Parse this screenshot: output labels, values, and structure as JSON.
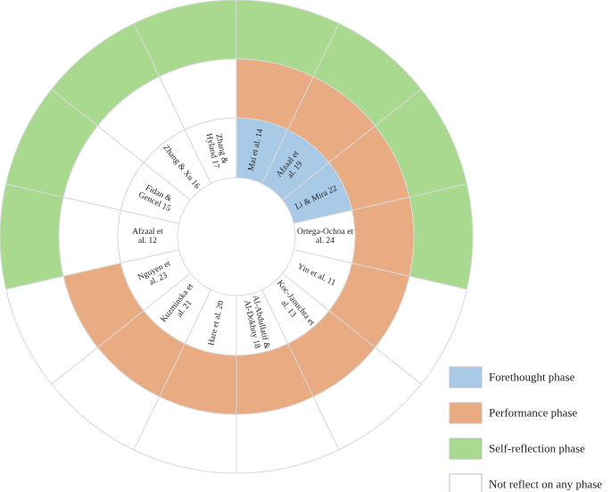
{
  "chart_data": {
    "type": "sunburst",
    "colors": {
      "forethought": "#a9cae6",
      "performance": "#e9ac82",
      "self_reflection": "#a9d98e",
      "none": "#ffffff"
    },
    "legend": [
      {
        "key": "forethought",
        "label": "Forethought phase"
      },
      {
        "key": "performance",
        "label": "Performance phase"
      },
      {
        "key": "self_reflection",
        "label": "Self-reflection phase"
      },
      {
        "key": "none",
        "label": "Not reflect on any phase"
      }
    ],
    "studies": [
      {
        "label": "Mai et al. 14",
        "rings": [
          "forethought",
          "performance",
          "self_reflection"
        ]
      },
      {
        "label": "Afzaal et al. 19",
        "rings": [
          "forethought",
          "performance",
          "self_reflection"
        ]
      },
      {
        "label": "Li & Mira 22",
        "rings": [
          "forethought",
          "performance",
          "self_reflection"
        ]
      },
      {
        "label": "Ortega-Ochoa et al. 24",
        "rings": [
          "none",
          "performance",
          "self_reflection"
        ]
      },
      {
        "label": "Yin et al. 11",
        "rings": [
          "none",
          "performance",
          "none"
        ]
      },
      {
        "label": "Koc-Januchta et al. 13",
        "rings": [
          "none",
          "performance",
          "none"
        ]
      },
      {
        "label": "Al-Abdullatif & Al-Dokhny 18",
        "rings": [
          "none",
          "performance",
          "none"
        ]
      },
      {
        "label": "Hare et al. 20",
        "rings": [
          "none",
          "performance",
          "none"
        ]
      },
      {
        "label": "Kuzminska et al. 21",
        "rings": [
          "none",
          "performance",
          "none"
        ]
      },
      {
        "label": "Nguyen et al. 23",
        "rings": [
          "none",
          "performance",
          "none"
        ]
      },
      {
        "label": "Afzaal et al. 12",
        "rings": [
          "none",
          "none",
          "self_reflection"
        ]
      },
      {
        "label": "Fidan & Gencel 15",
        "rings": [
          "none",
          "none",
          "self_reflection"
        ]
      },
      {
        "label": "Zhang & Xu 16",
        "rings": [
          "none",
          "none",
          "self_reflection"
        ]
      },
      {
        "label": "Zhang & Hyland 17",
        "rings": [
          "none",
          "none",
          "self_reflection"
        ]
      }
    ]
  }
}
